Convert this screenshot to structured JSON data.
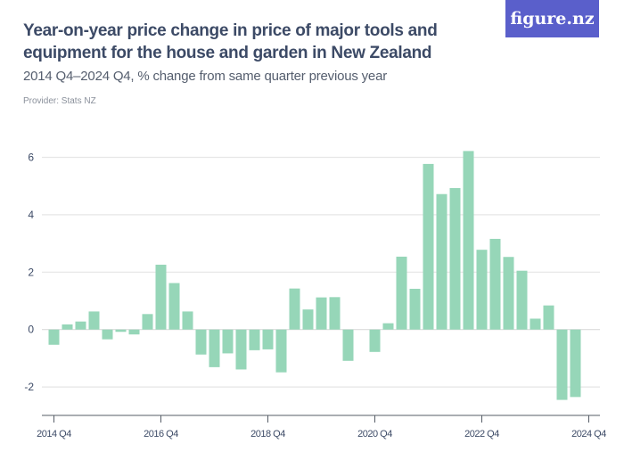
{
  "header": {
    "title": "Year-on-year price change in price of major tools and equipment for the house and garden in New Zealand",
    "subtitle": "2014 Q4–2024 Q4, % change from same quarter previous year",
    "provider": "Provider: Stats NZ",
    "logo": "figure.nz",
    "logo_color": "#5a5fcb"
  },
  "chart_data": {
    "type": "bar",
    "title": "Year-on-year price change in price of major tools and equipment for the house and garden in New Zealand",
    "subtitle": "2014 Q4–2024 Q4, % change from same quarter previous year",
    "xlabel": "",
    "ylabel": "% change",
    "ylim": [
      -2.9,
      6.5
    ],
    "yticks": [
      -2,
      0,
      2,
      4,
      6
    ],
    "ytick_labels": [
      "-2",
      "0",
      "2",
      "4",
      "6"
    ],
    "xtick_labels": [
      "2014 Q4",
      "2016 Q4",
      "2018 Q4",
      "2020 Q4",
      "2022 Q4",
      "2024 Q4"
    ],
    "xtick_indices": [
      0,
      8,
      16,
      24,
      32,
      40
    ],
    "bar_color": "#96d6b8",
    "grid": true,
    "categories": [
      "2014 Q4",
      "2015 Q1",
      "2015 Q2",
      "2015 Q3",
      "2015 Q4",
      "2016 Q1",
      "2016 Q2",
      "2016 Q3",
      "2016 Q4",
      "2017 Q1",
      "2017 Q2",
      "2017 Q3",
      "2017 Q4",
      "2018 Q1",
      "2018 Q2",
      "2018 Q3",
      "2018 Q4",
      "2019 Q1",
      "2019 Q2",
      "2019 Q3",
      "2019 Q4",
      "2020 Q1",
      "2020 Q2",
      "2020 Q3",
      "2020 Q4",
      "2021 Q1",
      "2021 Q2",
      "2021 Q3",
      "2021 Q4",
      "2022 Q1",
      "2022 Q2",
      "2022 Q3",
      "2022 Q4",
      "2023 Q1",
      "2023 Q2",
      "2023 Q3",
      "2023 Q4",
      "2024 Q1",
      "2024 Q2",
      "2024 Q3",
      "2024 Q4"
    ],
    "values": [
      -0.53,
      0.18,
      0.28,
      0.63,
      -0.34,
      -0.08,
      -0.17,
      0.54,
      2.26,
      1.62,
      0.63,
      -0.87,
      -1.31,
      -0.83,
      -1.39,
      -0.72,
      -0.69,
      -1.49,
      1.43,
      0.7,
      1.12,
      1.13,
      -1.09,
      0.0,
      -0.78,
      0.22,
      2.54,
      1.42,
      5.77,
      4.72,
      4.93,
      6.22,
      2.78,
      3.16,
      2.53,
      2.05,
      0.38,
      0.84,
      -2.45,
      -2.35,
      0.0
    ]
  }
}
